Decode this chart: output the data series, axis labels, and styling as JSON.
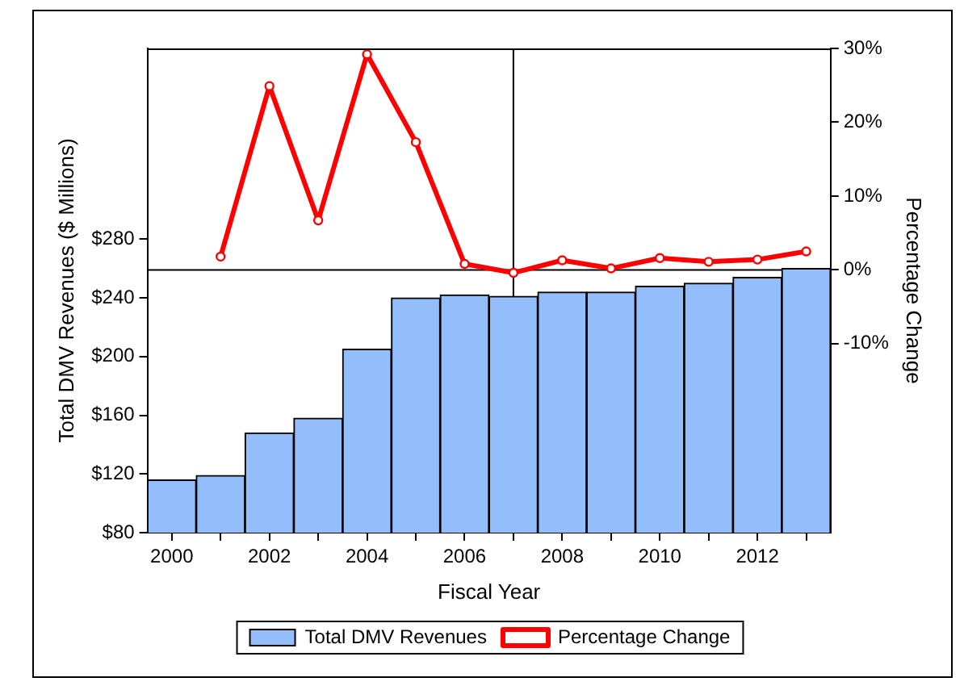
{
  "chart_data": {
    "type": "bar",
    "xlabel": "Fiscal Year",
    "ylabel": "Total DMV Revenues ($ Millions)",
    "y2label": "Percentage Change",
    "x": [
      2000,
      2001,
      2002,
      2003,
      2004,
      2005,
      2006,
      2007,
      2008,
      2009,
      2010,
      2011,
      2012,
      2013
    ],
    "xlim": [
      1999.5,
      2013.5
    ],
    "xticks": [
      2000,
      {
        "value": 2001,
        "label": null
      },
      2002,
      {
        "value": 2003,
        "label": null
      },
      2004,
      {
        "value": 2005,
        "label": null
      },
      2006,
      {
        "value": 2007,
        "label": null
      },
      2008,
      {
        "value": 2009,
        "label": null
      },
      2010,
      {
        "value": 2011,
        "label": null
      },
      2012,
      {
        "value": 2013,
        "label": null
      }
    ],
    "ylim": [
      80,
      410
    ],
    "yticks": [
      {
        "value": 80,
        "label": "$80"
      },
      {
        "value": 120,
        "label": "$120"
      },
      {
        "value": 160,
        "label": "$160"
      },
      {
        "value": 200,
        "label": "$200"
      },
      {
        "value": 240,
        "label": "$240"
      },
      {
        "value": 280,
        "label": "$280"
      }
    ],
    "y2lim": [
      -35.6,
      30
    ],
    "y2ticks": [
      {
        "value": -10,
        "label": "-10%"
      },
      {
        "value": 0,
        "label": "0%"
      },
      {
        "value": 10,
        "label": "10%"
      },
      {
        "value": 20,
        "label": "20%"
      },
      {
        "value": 30,
        "label": "30%"
      }
    ],
    "series": [
      {
        "name": "Total DMV Revenues",
        "color": "#94bdfc",
        "values": [
          116,
          119,
          148,
          158,
          205,
          240,
          242,
          241,
          244,
          244,
          248,
          250,
          254,
          260
        ]
      },
      {
        "name": "Percentage Change",
        "type": "line",
        "axis": "y2",
        "color": "#ff0000",
        "marker": "circle",
        "values": [
          null,
          1.8,
          24.9,
          6.7,
          29.2,
          17.3,
          0.8,
          -0.4,
          1.3,
          0.2,
          1.6,
          1.1,
          1.4,
          2.5
        ]
      }
    ],
    "ref_lines": [
      {
        "axis": "y2",
        "value": 0,
        "color": "#000000"
      },
      {
        "axis": "x",
        "value": 2007,
        "color": "#000000"
      }
    ],
    "grid": false,
    "legend": "bottom"
  }
}
